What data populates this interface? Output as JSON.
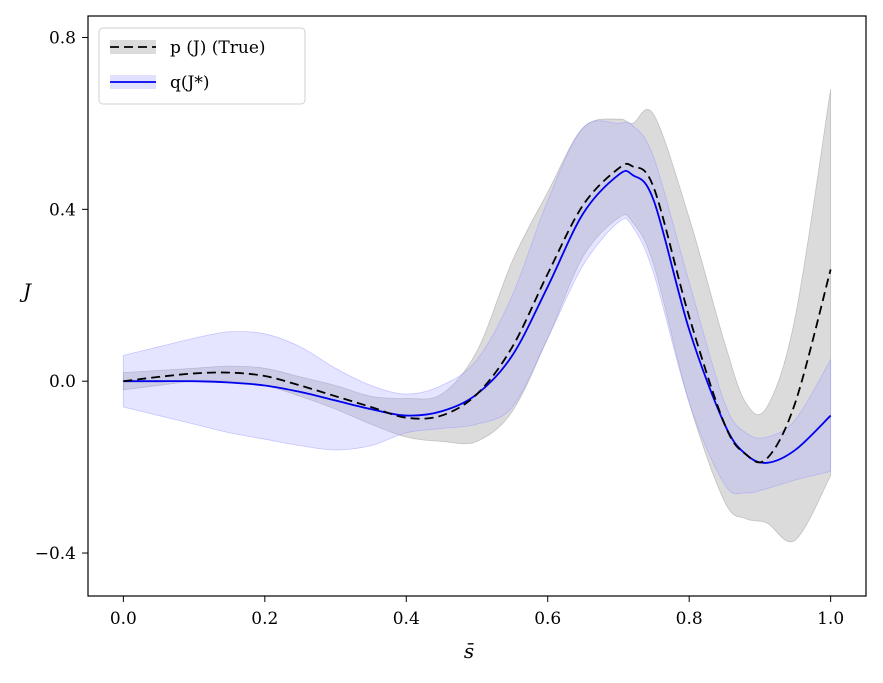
{
  "chart_data": {
    "type": "line",
    "title": "",
    "xlabel": "s̄",
    "ylabel": "J",
    "xlim": [
      -0.05,
      1.05
    ],
    "ylim": [
      -0.5,
      0.85
    ],
    "xticks": [
      0.0,
      0.2,
      0.4,
      0.6,
      0.8,
      1.0
    ],
    "xtick_labels": [
      "0.0",
      "0.2",
      "0.4",
      "0.6",
      "0.8",
      "1.0"
    ],
    "yticks": [
      0.8,
      0.4,
      0.0,
      -0.4
    ],
    "ytick_labels": [
      "0.8",
      "0.4",
      "0.0",
      "−0.4"
    ],
    "grid": false,
    "legend_position": "top-left",
    "series": [
      {
        "name": "p (J) (True)",
        "style": "dashed",
        "color": "#000000",
        "band_color": "#b0b0b0",
        "x": [
          0.0,
          0.05,
          0.1,
          0.15,
          0.2,
          0.25,
          0.3,
          0.35,
          0.4,
          0.45,
          0.5,
          0.55,
          0.6,
          0.65,
          0.7,
          0.72,
          0.75,
          0.8,
          0.85,
          0.88,
          0.91,
          0.95,
          1.0
        ],
        "values": [
          0.0,
          0.01,
          0.018,
          0.02,
          0.012,
          -0.01,
          -0.035,
          -0.06,
          -0.085,
          -0.08,
          -0.03,
          0.08,
          0.25,
          0.41,
          0.495,
          0.5,
          0.45,
          0.15,
          -0.1,
          -0.17,
          -0.18,
          -0.05,
          0.26
        ],
        "band_lower": [
          -0.02,
          -0.01,
          0.0,
          0.0,
          -0.01,
          -0.035,
          -0.065,
          -0.1,
          -0.13,
          -0.14,
          -0.14,
          -0.07,
          0.1,
          0.29,
          0.38,
          0.37,
          0.27,
          -0.05,
          -0.28,
          -0.32,
          -0.33,
          -0.37,
          -0.22
        ],
        "band_upper": [
          0.02,
          0.025,
          0.03,
          0.035,
          0.03,
          0.01,
          -0.01,
          -0.035,
          -0.04,
          -0.03,
          0.07,
          0.28,
          0.44,
          0.59,
          0.61,
          0.6,
          0.62,
          0.38,
          0.09,
          -0.05,
          -0.06,
          0.15,
          0.68
        ]
      },
      {
        "name": "q(J*)",
        "style": "solid",
        "color": "#0000ee",
        "band_color": "#aaaaff",
        "x": [
          0.0,
          0.05,
          0.1,
          0.15,
          0.2,
          0.25,
          0.3,
          0.35,
          0.4,
          0.45,
          0.5,
          0.55,
          0.6,
          0.65,
          0.7,
          0.72,
          0.75,
          0.8,
          0.85,
          0.88,
          0.91,
          0.95,
          1.0
        ],
        "values": [
          0.0,
          0.0,
          0.0,
          -0.003,
          -0.01,
          -0.025,
          -0.045,
          -0.065,
          -0.08,
          -0.07,
          -0.03,
          0.06,
          0.22,
          0.39,
          0.48,
          0.48,
          0.42,
          0.12,
          -0.1,
          -0.17,
          -0.19,
          -0.16,
          -0.08
        ],
        "band_lower": [
          -0.06,
          -0.08,
          -0.1,
          -0.12,
          -0.135,
          -0.15,
          -0.16,
          -0.15,
          -0.12,
          -0.11,
          -0.1,
          -0.06,
          0.1,
          0.27,
          0.37,
          0.36,
          0.25,
          -0.05,
          -0.24,
          -0.26,
          -0.25,
          -0.23,
          -0.21
        ],
        "band_upper": [
          0.06,
          0.08,
          0.1,
          0.115,
          0.11,
          0.08,
          0.03,
          -0.01,
          -0.03,
          -0.01,
          0.05,
          0.2,
          0.42,
          0.59,
          0.6,
          0.595,
          0.52,
          0.23,
          -0.05,
          -0.12,
          -0.13,
          -0.09,
          0.05
        ]
      }
    ]
  }
}
